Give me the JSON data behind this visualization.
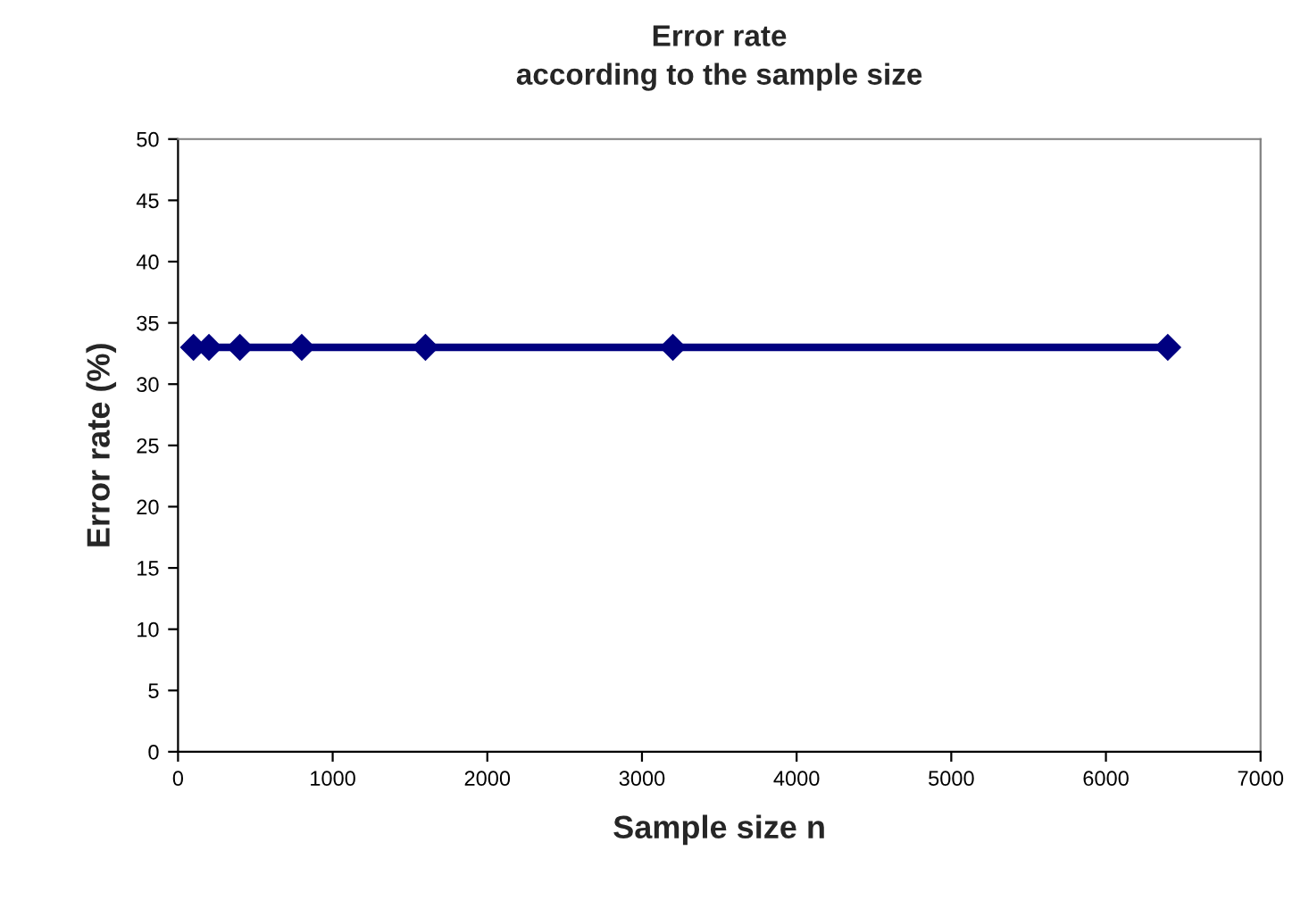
{
  "chart_data": {
    "type": "line",
    "title": "Error rate\naccording to the sample size",
    "xlabel": "Sample size n",
    "ylabel": "Error rate (%)",
    "x": [
      100,
      200,
      400,
      800,
      1600,
      3200,
      6400
    ],
    "series": [
      {
        "color": "#000080",
        "values": [
          33,
          33,
          33,
          33,
          33,
          33,
          33
        ]
      }
    ],
    "xlim": [
      0,
      7000
    ],
    "xticks": [
      0,
      1000,
      2000,
      3000,
      4000,
      5000,
      6000,
      7000
    ],
    "ylim": [
      0,
      50
    ],
    "yticks": [
      0,
      5,
      10,
      15,
      20,
      25,
      30,
      35,
      40,
      45,
      50
    ],
    "grid": false,
    "legend": false,
    "marker": "diamond",
    "line_style": "solid"
  }
}
